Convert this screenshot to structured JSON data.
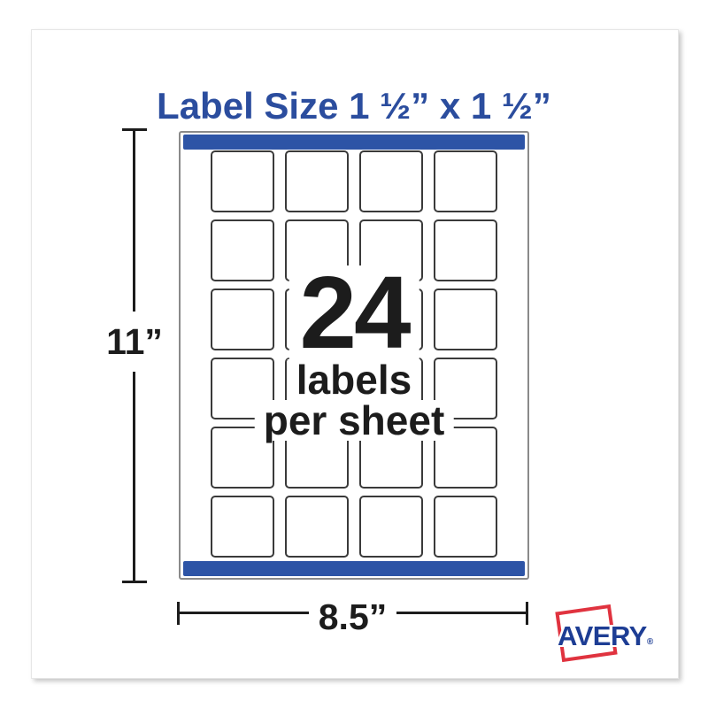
{
  "title": {
    "text": "Label Size 1 ½” x 1 ½”"
  },
  "sheet": {
    "rows": 6,
    "columns": 4,
    "label_count": 24,
    "overlay": {
      "count": "24",
      "line1": "labels",
      "line2": "per sheet"
    }
  },
  "dimensions": {
    "height": "11”",
    "width": "8.5”"
  },
  "brand": {
    "name": "AVERY",
    "registered": "®"
  },
  "colors": {
    "title_blue": "#2b4d9e",
    "bar_blue": "#2d54a6",
    "avery_blue": "#1d3d94",
    "avery_red": "#e0333f",
    "line_black": "#1c1c1c",
    "label_border": "#3a3a3a",
    "sheet_border": "#8a8a8a"
  }
}
